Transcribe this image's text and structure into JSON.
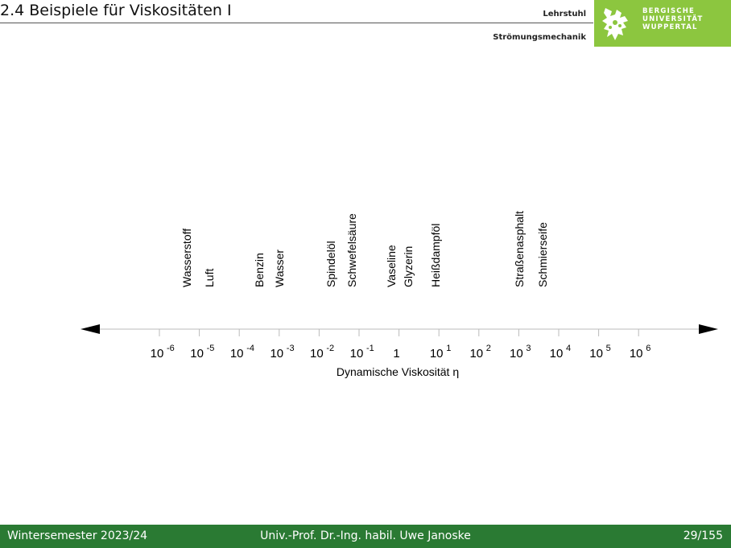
{
  "header": {
    "title": "2.4 Beispiele für Viskositäten I",
    "chair_line1": "Lehrstuhl",
    "chair_line2": "Strömungsmechanik",
    "logo_text_line1": "BERGISCHE",
    "logo_text_line2": "UNIVERSITÄT",
    "logo_text_line3": "WUPPERTAL",
    "logo_color": "#8cc63f"
  },
  "diagram": {
    "axis_title": "Dynamische Viskosität η",
    "scale": "logarithmic",
    "ticks": [
      {
        "base": "10",
        "exp": "-6"
      },
      {
        "base": "10",
        "exp": "-5"
      },
      {
        "base": "10",
        "exp": "-4"
      },
      {
        "base": "10",
        "exp": "-3"
      },
      {
        "base": "10",
        "exp": "-2"
      },
      {
        "base": "10",
        "exp": "-1"
      },
      {
        "base": "1",
        "exp": ""
      },
      {
        "base": "10",
        "exp": "1"
      },
      {
        "base": "10",
        "exp": "2"
      },
      {
        "base": "10",
        "exp": "3"
      },
      {
        "base": "10",
        "exp": "4"
      },
      {
        "base": "10",
        "exp": "5"
      },
      {
        "base": "10",
        "exp": "6"
      }
    ],
    "substances": [
      {
        "name": "Wasserstoff"
      },
      {
        "name": "Luft"
      },
      {
        "name": "Benzin"
      },
      {
        "name": "Wasser"
      },
      {
        "name": "Spindelöl"
      },
      {
        "name": "Schwefelsäure"
      },
      {
        "name": "Vaseline"
      },
      {
        "name": "Glyzerin"
      },
      {
        "name": "Heißdampföl"
      },
      {
        "name": "Straßenasphalt"
      },
      {
        "name": "Schmierseife"
      }
    ]
  },
  "footer": {
    "left": "Wintersemester 2023/24",
    "center": "Univ.-Prof. Dr.-Ing. habil. Uwe Janoske",
    "right": "29/155",
    "color": "#2a7a33"
  }
}
